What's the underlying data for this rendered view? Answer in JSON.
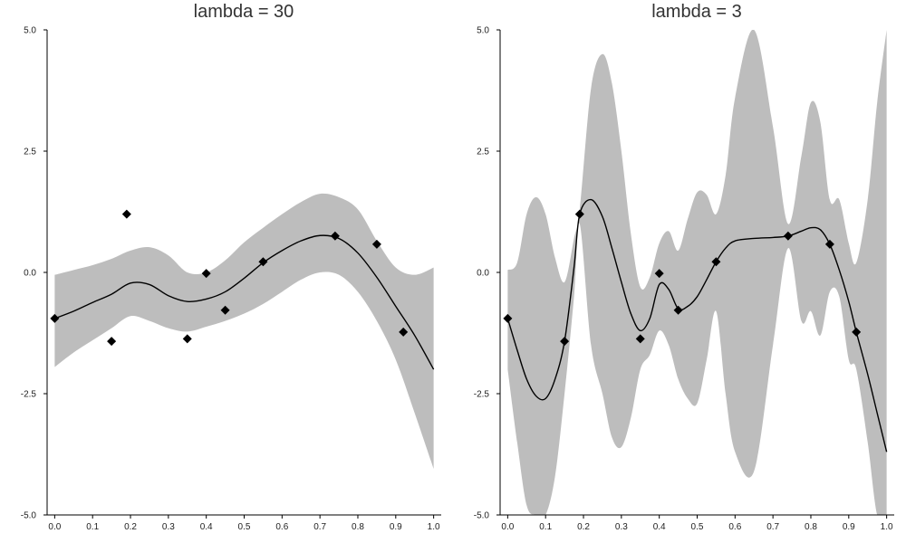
{
  "chart_data": [
    {
      "type": "line",
      "title": "lambda = 30",
      "xlim": [
        -0.02,
        1.02
      ],
      "ylim": [
        -5.0,
        5.0
      ],
      "x_ticks": [
        0.0,
        0.1,
        0.2,
        0.3,
        0.4,
        0.5,
        0.6,
        0.7,
        0.8,
        0.9,
        1.0
      ],
      "x_tick_labels": [
        "0.0",
        "0.1",
        "0.2",
        "0.3",
        "0.4",
        "0.5",
        "0.6",
        "0.7",
        "0.8",
        "0.9",
        "1.0"
      ],
      "y_ticks": [
        -5.0,
        -2.5,
        0.0,
        2.5,
        5.0
      ],
      "y_tick_labels": [
        "-5.0",
        "-2.5",
        "0.0",
        "2.5",
        "5.0"
      ],
      "grid": false,
      "colors": {
        "band": "#bdbdbd",
        "line": "#000000",
        "marker": "#000000"
      },
      "observations": {
        "x": [
          0.0,
          0.15,
          0.19,
          0.35,
          0.4,
          0.45,
          0.55,
          0.74,
          0.85,
          0.92
        ],
        "y": [
          -0.95,
          -1.42,
          1.2,
          -1.37,
          -0.02,
          -0.78,
          0.22,
          0.75,
          0.58,
          -1.23
        ]
      },
      "mean_line": {
        "x": [
          0.0,
          0.05,
          0.1,
          0.15,
          0.2,
          0.25,
          0.3,
          0.35,
          0.4,
          0.45,
          0.5,
          0.55,
          0.6,
          0.65,
          0.7,
          0.75,
          0.8,
          0.85,
          0.9,
          0.95,
          1.0
        ],
        "y": [
          -0.95,
          -0.8,
          -0.62,
          -0.45,
          -0.22,
          -0.25,
          -0.48,
          -0.6,
          -0.55,
          -0.4,
          -0.12,
          0.2,
          0.45,
          0.65,
          0.76,
          0.7,
          0.4,
          -0.1,
          -0.7,
          -1.3,
          -2.0
        ]
      },
      "band_upper": [
        -0.05,
        0.05,
        0.15,
        0.28,
        0.45,
        0.52,
        0.35,
        0.0,
        0.0,
        0.25,
        0.62,
        0.92,
        1.2,
        1.45,
        1.62,
        1.55,
        1.3,
        0.65,
        0.1,
        -0.05,
        0.1
      ],
      "band_lower": [
        -1.95,
        -1.65,
        -1.4,
        -1.15,
        -0.9,
        -1.0,
        -1.15,
        -1.22,
        -1.12,
        -1.0,
        -0.85,
        -0.65,
        -0.4,
        -0.15,
        0.0,
        -0.05,
        -0.4,
        -1.0,
        -1.8,
        -2.9,
        -4.05
      ]
    },
    {
      "type": "line",
      "title": "lambda = 3",
      "xlim": [
        -0.02,
        1.02
      ],
      "ylim": [
        -5.0,
        5.0
      ],
      "x_ticks": [
        0.0,
        0.1,
        0.2,
        0.3,
        0.4,
        0.5,
        0.6,
        0.7,
        0.8,
        0.9,
        1.0
      ],
      "x_tick_labels": [
        "0.0",
        "0.1",
        "0.2",
        "0.3",
        "0.4",
        "0.5",
        "0.6",
        "0.7",
        "0.8",
        "0.9",
        "1.0"
      ],
      "y_ticks": [
        -5.0,
        -2.5,
        0.0,
        2.5,
        5.0
      ],
      "y_tick_labels": [
        "-5.0",
        "-2.5",
        "0.0",
        "2.5",
        "5.0"
      ],
      "grid": false,
      "colors": {
        "band": "#bdbdbd",
        "line": "#000000",
        "marker": "#000000"
      },
      "observations": {
        "x": [
          0.0,
          0.15,
          0.19,
          0.35,
          0.4,
          0.45,
          0.55,
          0.74,
          0.85,
          0.92
        ],
        "y": [
          -0.95,
          -1.42,
          1.2,
          -1.37,
          -0.02,
          -0.78,
          0.22,
          0.75,
          0.58,
          -1.23
        ]
      },
      "mean_line": {
        "x": [
          0.0,
          0.025,
          0.05,
          0.075,
          0.1,
          0.125,
          0.15,
          0.175,
          0.19,
          0.22,
          0.25,
          0.275,
          0.3,
          0.325,
          0.35,
          0.375,
          0.4,
          0.425,
          0.45,
          0.475,
          0.5,
          0.525,
          0.55,
          0.575,
          0.6,
          0.65,
          0.7,
          0.74,
          0.775,
          0.8,
          0.825,
          0.85,
          0.875,
          0.9,
          0.92,
          0.95,
          0.975,
          1.0
        ],
        "y": [
          -0.95,
          -1.6,
          -2.2,
          -2.55,
          -2.6,
          -2.2,
          -1.42,
          0.1,
          1.2,
          1.5,
          1.15,
          0.5,
          -0.2,
          -0.85,
          -1.2,
          -0.95,
          -0.25,
          -0.35,
          -0.75,
          -0.7,
          -0.5,
          -0.15,
          0.22,
          0.5,
          0.65,
          0.7,
          0.72,
          0.75,
          0.85,
          0.92,
          0.88,
          0.58,
          0.05,
          -0.6,
          -1.23,
          -2.1,
          -2.9,
          -3.7
        ]
      },
      "band_upper": [
        0.05,
        0.2,
        1.2,
        1.55,
        1.2,
        0.3,
        -0.2,
        0.7,
        1.3,
        3.8,
        4.5,
        3.9,
        2.5,
        0.8,
        -0.3,
        -0.1,
        0.6,
        0.85,
        0.45,
        1.1,
        1.65,
        1.6,
        1.2,
        2.0,
        3.6,
        5.0,
        3.0,
        1.0,
        2.4,
        3.5,
        3.1,
        1.5,
        1.5,
        0.6,
        0.2,
        1.5,
        3.5,
        5.0
      ],
      "band_lower": [
        -2.0,
        -3.5,
        -4.8,
        -5.0,
        -5.0,
        -4.2,
        -2.5,
        -0.5,
        1.0,
        -1.5,
        -2.5,
        -3.4,
        -3.6,
        -3.0,
        -2.0,
        -1.7,
        -1.2,
        -1.5,
        -2.2,
        -2.6,
        -2.7,
        -1.8,
        -0.8,
        -2.5,
        -3.7,
        -4.1,
        -1.5,
        0.5,
        -1.0,
        -0.8,
        -1.3,
        -0.4,
        -0.5,
        -1.8,
        -2.0,
        -3.5,
        -5.0,
        -5.0
      ]
    }
  ]
}
